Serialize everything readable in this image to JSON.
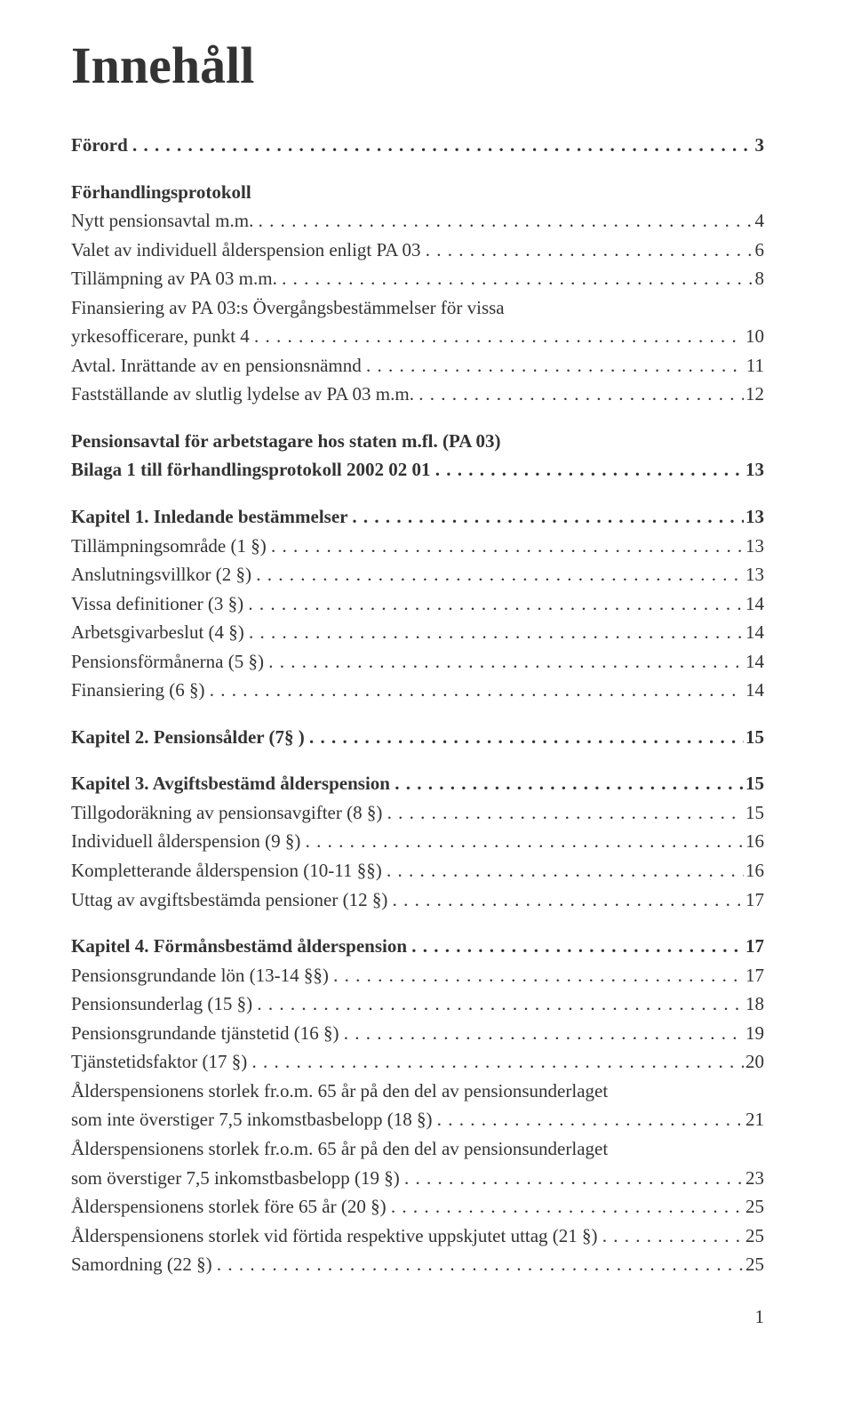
{
  "title": "Innehåll",
  "pagenum": "1",
  "entries": [
    {
      "label": "Förord",
      "page": "3",
      "bold": true,
      "leader": true
    },
    {
      "gap": true
    },
    {
      "label": "Förhandlingsprotokoll",
      "bold": true,
      "leader": false,
      "nopage": true
    },
    {
      "label": "Nytt pensionsavtal m.m.",
      "page": "4",
      "bold": false,
      "leader": true
    },
    {
      "label": "Valet av individuell ålderspension enligt PA 03",
      "page": "6",
      "leader": true
    },
    {
      "label": "Tillämpning av PA 03 m.m.",
      "page": "8",
      "leader": true
    },
    {
      "label": "Finansiering av PA 03:s Övergångsbestämmelser för vissa",
      "leader": false,
      "nopage": true
    },
    {
      "label": "yrkesofficerare, punkt 4",
      "page": "10",
      "leader": true
    },
    {
      "label": "Avtal. Inrättande av en pensionsnämnd",
      "page": "11",
      "leader": true
    },
    {
      "label": "Fastställande av slutlig lydelse av PA 03 m.m.",
      "page": "12",
      "leader": true
    },
    {
      "gap": true
    },
    {
      "label": "Pensionsavtal för arbetstagare hos staten m.fl. (PA 03)",
      "bold": true,
      "leader": false,
      "nopage": true
    },
    {
      "label": "Bilaga 1 till förhandlingsprotokoll 2002 02 01",
      "page": "13",
      "bold": true,
      "leader": true
    },
    {
      "gap": true
    },
    {
      "label": "Kapitel 1. Inledande bestämmelser",
      "page": "13",
      "bold": true,
      "leader": true
    },
    {
      "label": "Tillämpningsområde (1 §)",
      "page": "13",
      "leader": true
    },
    {
      "label": "Anslutningsvillkor (2 §)",
      "page": "13",
      "leader": true
    },
    {
      "label": "Vissa definitioner (3 §)",
      "page": "14",
      "leader": true
    },
    {
      "label": "Arbetsgivarbeslut (4 §)",
      "page": "14",
      "leader": true
    },
    {
      "label": "Pensionsförmånerna (5 §)",
      "page": "14",
      "leader": true
    },
    {
      "label": "Finansiering (6 §)",
      "page": "14",
      "leader": true
    },
    {
      "gap": true
    },
    {
      "label": "Kapitel 2. Pensionsålder (7§ )",
      "page": "15",
      "bold": true,
      "leader": true
    },
    {
      "gap": true
    },
    {
      "label": "Kapitel 3. Avgiftsbestämd ålderspension",
      "page": "15",
      "bold": true,
      "leader": true
    },
    {
      "label": "Tillgodoräkning av pensionsavgifter (8 §)",
      "page": "15",
      "leader": true
    },
    {
      "label": "Individuell ålderspension (9 §)",
      "page": "16",
      "leader": true
    },
    {
      "label": "Kompletterande ålderspension (10-11 §§)",
      "page": "16",
      "leader": true
    },
    {
      "label": "Uttag av avgiftsbestämda pensioner (12 §)",
      "page": "17",
      "leader": true
    },
    {
      "gap": true
    },
    {
      "label": "Kapitel 4. Förmånsbestämd ålderspension",
      "page": "17",
      "bold": true,
      "leader": true
    },
    {
      "label": "Pensionsgrundande lön (13-14 §§)",
      "page": "17",
      "leader": true
    },
    {
      "label": "Pensionsunderlag (15 §)",
      "page": "18",
      "leader": true
    },
    {
      "label": "Pensionsgrundande tjänstetid (16 §)",
      "page": "19",
      "leader": true
    },
    {
      "label": "Tjänstetidsfaktor (17 §)",
      "page": "20",
      "leader": true
    },
    {
      "label": "Ålderspensionens storlek fr.o.m. 65 år på den del av pensionsunderlaget",
      "leader": false,
      "nopage": true
    },
    {
      "label": "som inte överstiger 7,5 inkomstbasbelopp (18 §)",
      "page": "21",
      "leader": true
    },
    {
      "label": "Ålderspensionens storlek fr.o.m. 65 år på den del av pensionsunderlaget",
      "leader": false,
      "nopage": true
    },
    {
      "label": "som överstiger 7,5 inkomstbasbelopp (19 §)",
      "page": "23",
      "leader": true
    },
    {
      "label": "Ålderspensionens storlek före 65 år (20 §)",
      "page": "25",
      "leader": true
    },
    {
      "label": "Ålderspensionens storlek vid förtida respektive uppskjutet uttag (21 §)",
      "page": "25",
      "leader": true
    },
    {
      "label": "Samordning (22 §)",
      "page": "25",
      "leader": true
    }
  ]
}
